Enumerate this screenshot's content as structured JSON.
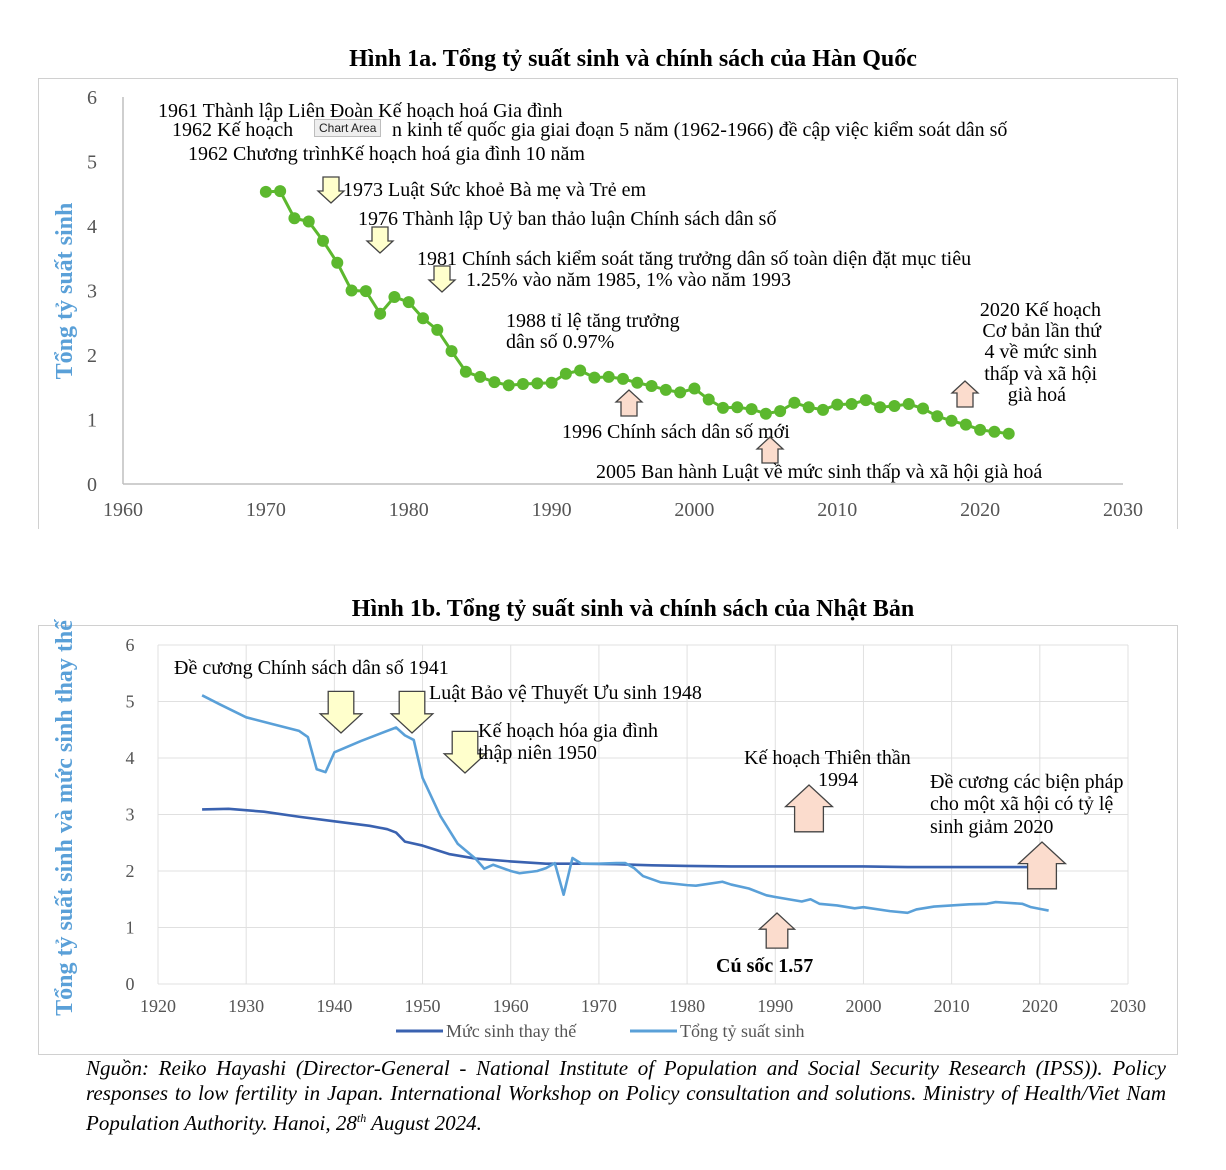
{
  "chart_data": [
    {
      "type": "line",
      "title": "Hình 1a. Tổng tỷ suất sinh và chính sách của Hàn Quốc",
      "ylabel": "Tổng tỷ suất sinh",
      "xlabel": "",
      "xlim": [
        1960,
        2030
      ],
      "ylim": [
        0,
        6
      ],
      "x_ticks": [
        "1960",
        "1970",
        "1980",
        "1990",
        "2000",
        "2010",
        "2020",
        "2030"
      ],
      "y_ticks": [
        "0",
        "1",
        "2",
        "3",
        "4",
        "5",
        "6"
      ],
      "grid": false,
      "series": [
        {
          "color": "#5cb82e",
          "points": [
            [
              1970,
              4.53
            ],
            [
              1971,
              4.54
            ],
            [
              1972,
              4.12
            ],
            [
              1973,
              4.07
            ],
            [
              1974,
              3.77
            ],
            [
              1975,
              3.43
            ],
            [
              1976,
              3.0
            ],
            [
              1977,
              2.99
            ],
            [
              1978,
              2.64
            ],
            [
              1979,
              2.9
            ],
            [
              1980,
              2.82
            ],
            [
              1981,
              2.57
            ],
            [
              1982,
              2.39
            ],
            [
              1983,
              2.06
            ],
            [
              1984,
              1.74
            ],
            [
              1985,
              1.66
            ],
            [
              1986,
              1.58
            ],
            [
              1987,
              1.53
            ],
            [
              1988,
              1.55
            ],
            [
              1989,
              1.56
            ],
            [
              1990,
              1.57
            ],
            [
              1991,
              1.71
            ],
            [
              1992,
              1.76
            ],
            [
              1993,
              1.65
            ],
            [
              1994,
              1.66
            ],
            [
              1995,
              1.63
            ],
            [
              1996,
              1.57
            ],
            [
              1997,
              1.52
            ],
            [
              1998,
              1.46
            ],
            [
              1999,
              1.42
            ],
            [
              2000,
              1.48
            ],
            [
              2001,
              1.31
            ],
            [
              2002,
              1.18
            ],
            [
              2003,
              1.19
            ],
            [
              2004,
              1.16
            ],
            [
              2005,
              1.09
            ],
            [
              2006,
              1.13
            ],
            [
              2007,
              1.26
            ],
            [
              2008,
              1.19
            ],
            [
              2009,
              1.15
            ],
            [
              2010,
              1.23
            ],
            [
              2011,
              1.24
            ],
            [
              2012,
              1.3
            ],
            [
              2013,
              1.19
            ],
            [
              2014,
              1.21
            ],
            [
              2015,
              1.24
            ],
            [
              2016,
              1.17
            ],
            [
              2017,
              1.05
            ],
            [
              2018,
              0.98
            ],
            [
              2019,
              0.92
            ],
            [
              2020,
              0.84
            ],
            [
              2021,
              0.81
            ],
            [
              2022,
              0.78
            ]
          ]
        }
      ],
      "annotations": [
        "1961 Thành lập Liên Đoàn Kế hoạch hoá Gia đình",
        "1962 Kế hoạch",
        "n kinh tế quốc gia giai đoạn 5 năm (1962-1966) đề cập việc kiểm soát dân số",
        "1962 Chương trìnhKế hoạch hoá gia đình 10 năm",
        "1973 Luật Sức khoẻ Bà mẹ và Trẻ em",
        "1976 Thành lập Uỷ ban thảo luận Chính sách dân số",
        "1981 Chính sách kiểm soát tăng trưởng dân số toàn diện đặt mục tiêu",
        "1.25% vào năm 1985, 1% vào năm 1993",
        "1988 tỉ lệ tăng trưởng",
        "dân số 0.97%",
        "1996 Chính sách dân số mới",
        "2005 Ban hành Luật về mức sinh thấp và xã hội già hoá",
        "2020 Kế hoạch",
        "Cơ bản lần thứ",
        "4 về mức sinh",
        "thấp và xã hội",
        "già hoá"
      ],
      "tooltip": "Chart Area"
    },
    {
      "type": "line",
      "title": "Hình 1b. Tổng tỷ suất sinh và chính sách của Nhật Bản",
      "ylabel": "Tổng tỷ suất sinh và mức sinh thay thế",
      "xlabel": "",
      "xlim": [
        1920,
        2030
      ],
      "ylim": [
        0,
        6
      ],
      "x_ticks": [
        "1920",
        "1930",
        "1940",
        "1950",
        "1960",
        "1970",
        "1980",
        "1990",
        "2000",
        "2010",
        "2020",
        "2030"
      ],
      "y_ticks": [
        "0",
        "1",
        "2",
        "3",
        "4",
        "5",
        "6"
      ],
      "grid": true,
      "legend": "bottom",
      "series": [
        {
          "name": "Mức sinh thay thế",
          "color": "#3a62b0",
          "points": [
            [
              1925,
              3.09
            ],
            [
              1928,
              3.1
            ],
            [
              1932,
              3.05
            ],
            [
              1936,
              2.96
            ],
            [
              1940,
              2.88
            ],
            [
              1944,
              2.8
            ],
            [
              1946,
              2.74
            ],
            [
              1947,
              2.68
            ],
            [
              1948,
              2.52
            ],
            [
              1950,
              2.45
            ],
            [
              1953,
              2.3
            ],
            [
              1956,
              2.22
            ],
            [
              1960,
              2.17
            ],
            [
              1964,
              2.13
            ],
            [
              1968,
              2.13
            ],
            [
              1972,
              2.12
            ],
            [
              1976,
              2.1
            ],
            [
              1980,
              2.09
            ],
            [
              1985,
              2.08
            ],
            [
              1990,
              2.08
            ],
            [
              1995,
              2.08
            ],
            [
              2000,
              2.08
            ],
            [
              2005,
              2.07
            ],
            [
              2010,
              2.07
            ],
            [
              2015,
              2.07
            ],
            [
              2020,
              2.07
            ]
          ]
        },
        {
          "name": "Tổng tỷ suất sinh",
          "color": "#5aa0d8",
          "points": [
            [
              1925,
              5.11
            ],
            [
              1927,
              4.95
            ],
            [
              1930,
              4.72
            ],
            [
              1933,
              4.6
            ],
            [
              1936,
              4.48
            ],
            [
              1937,
              4.37
            ],
            [
              1938,
              3.8
            ],
            [
              1939,
              3.75
            ],
            [
              1940,
              4.1
            ],
            [
              1943,
              4.3
            ],
            [
              1947,
              4.54
            ],
            [
              1948,
              4.4
            ],
            [
              1949,
              4.32
            ],
            [
              1950,
              3.65
            ],
            [
              1952,
              2.98
            ],
            [
              1954,
              2.48
            ],
            [
              1956,
              2.22
            ],
            [
              1957,
              2.04
            ],
            [
              1958,
              2.11
            ],
            [
              1960,
              2.0
            ],
            [
              1961,
              1.96
            ],
            [
              1963,
              2.0
            ],
            [
              1964,
              2.05
            ],
            [
              1965,
              2.14
            ],
            [
              1966,
              1.58
            ],
            [
              1967,
              2.23
            ],
            [
              1968,
              2.13
            ],
            [
              1970,
              2.13
            ],
            [
              1972,
              2.14
            ],
            [
              1973,
              2.14
            ],
            [
              1974,
              2.05
            ],
            [
              1975,
              1.91
            ],
            [
              1977,
              1.8
            ],
            [
              1980,
              1.75
            ],
            [
              1981,
              1.74
            ],
            [
              1984,
              1.81
            ],
            [
              1985,
              1.76
            ],
            [
              1987,
              1.69
            ],
            [
              1989,
              1.57
            ],
            [
              1990,
              1.54
            ],
            [
              1993,
              1.46
            ],
            [
              1994,
              1.5
            ],
            [
              1995,
              1.42
            ],
            [
              1997,
              1.39
            ],
            [
              1999,
              1.34
            ],
            [
              2000,
              1.36
            ],
            [
              2003,
              1.29
            ],
            [
              2005,
              1.26
            ],
            [
              2006,
              1.32
            ],
            [
              2008,
              1.37
            ],
            [
              2010,
              1.39
            ],
            [
              2012,
              1.41
            ],
            [
              2014,
              1.42
            ],
            [
              2015,
              1.45
            ],
            [
              2016,
              1.44
            ],
            [
              2018,
              1.42
            ],
            [
              2019,
              1.36
            ],
            [
              2020,
              1.33
            ],
            [
              2021,
              1.3
            ]
          ]
        }
      ],
      "annotations": [
        "Đề cương Chính sách dân số 1941",
        "Luật Bảo vệ Thuyết Ưu sinh 1948",
        "Kế hoạch hóa gia đình",
        "thập niên 1950",
        "Kế hoạch Thiên thần",
        "1994",
        "Đề cương các biện pháp",
        "cho một xã hội có tỷ lệ",
        "sinh giảm 2020",
        "Cú sốc 1.57"
      ]
    }
  ],
  "source": {
    "text_a": "Nguồn: Reiko Hayashi (Director-General - National Institute of Population and Social Security Research (IPSS)). Policy responses to low fertility in Japan. International Workshop on Policy consultation and solutions. Ministry of Health/Viet Nam Population Authority. Hanoi, 28",
    "sup": "th",
    "text_b": " August 2024."
  },
  "colors": {
    "axis_title": "#5aa0d8",
    "arrow_yellow_fill": "#ffffcc",
    "arrow_pink_fill": "#fbdccd"
  }
}
